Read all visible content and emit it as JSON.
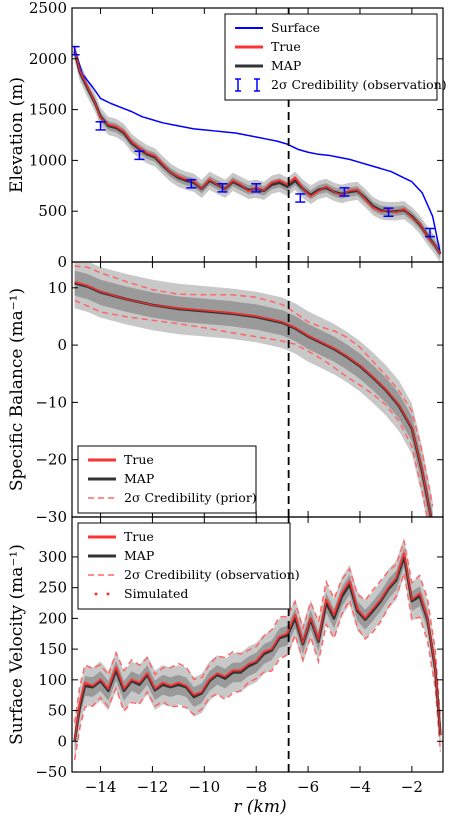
{
  "figure": {
    "shared_xlabel": "r (km)",
    "colors": {
      "surface": "#0000ff",
      "true": "#ff3333",
      "map": "#333333",
      "band_outer": "#c8c8c8",
      "band_inner": "#9a9a9a",
      "dashed_red": "#ff6666"
    }
  },
  "chart_data": [
    {
      "type": "line",
      "ylabel": "Elevation (m)",
      "xlim": [
        -15.1,
        -0.8
      ],
      "ylim": [
        0,
        2500
      ],
      "yticks": [
        0,
        500,
        1000,
        1500,
        2000,
        2500
      ],
      "legend_position": "top-right",
      "legend": [
        "Surface",
        "True",
        "MAP",
        "2σ Credibility (observation)"
      ],
      "vline_x": -6.75,
      "series": [
        {
          "name": "Surface",
          "x": [
            -15.0,
            -14.7,
            -14.3,
            -14.0,
            -13.6,
            -13.2,
            -12.8,
            -12.4,
            -12.0,
            -11.6,
            -11.2,
            -10.8,
            -10.4,
            -10.0,
            -9.6,
            -9.2,
            -8.8,
            -8.4,
            -8.0,
            -7.6,
            -7.2,
            -6.8,
            -6.4,
            -6.0,
            -5.6,
            -5.2,
            -4.8,
            -4.4,
            -4.0,
            -3.6,
            -3.2,
            -2.8,
            -2.4,
            -2.0,
            -1.6,
            -1.2,
            -0.9
          ],
          "y": [
            2100,
            1850,
            1720,
            1610,
            1560,
            1520,
            1480,
            1430,
            1400,
            1370,
            1350,
            1330,
            1310,
            1300,
            1290,
            1280,
            1270,
            1250,
            1230,
            1210,
            1190,
            1160,
            1110,
            1080,
            1060,
            1050,
            1030,
            1010,
            980,
            950,
            920,
            890,
            840,
            790,
            680,
            450,
            80
          ]
        },
        {
          "name": "True",
          "x": [
            -15.0,
            -14.8,
            -14.5,
            -14.2,
            -14.0,
            -13.7,
            -13.4,
            -13.1,
            -12.8,
            -12.5,
            -12.2,
            -11.9,
            -11.6,
            -11.3,
            -11.0,
            -10.7,
            -10.4,
            -10.1,
            -9.8,
            -9.5,
            -9.2,
            -8.9,
            -8.6,
            -8.3,
            -8.0,
            -7.7,
            -7.4,
            -7.1,
            -6.8,
            -6.5,
            -6.2,
            -5.9,
            -5.6,
            -5.3,
            -5.0,
            -4.7,
            -4.4,
            -4.1,
            -3.8,
            -3.5,
            -3.2,
            -2.9,
            -2.6,
            -2.3,
            -2.0,
            -1.7,
            -1.4,
            -1.1,
            -0.9
          ],
          "y": [
            2080,
            1880,
            1720,
            1560,
            1420,
            1350,
            1330,
            1280,
            1180,
            1120,
            1070,
            1040,
            960,
            880,
            840,
            810,
            790,
            720,
            810,
            760,
            720,
            800,
            760,
            700,
            730,
            700,
            780,
            800,
            760,
            830,
            720,
            650,
            700,
            740,
            690,
            660,
            700,
            710,
            620,
            540,
            500,
            510,
            490,
            520,
            440,
            380,
            250,
            160,
            80
          ]
        },
        {
          "name": "MAP",
          "x": [
            -15.0,
            -14.8,
            -14.5,
            -14.2,
            -14.0,
            -13.7,
            -13.4,
            -13.1,
            -12.8,
            -12.5,
            -12.2,
            -11.9,
            -11.6,
            -11.3,
            -11.0,
            -10.7,
            -10.4,
            -10.1,
            -9.8,
            -9.5,
            -9.2,
            -8.9,
            -8.6,
            -8.3,
            -8.0,
            -7.7,
            -7.4,
            -7.1,
            -6.8,
            -6.5,
            -6.2,
            -5.9,
            -5.6,
            -5.3,
            -5.0,
            -4.7,
            -4.4,
            -4.1,
            -3.8,
            -3.5,
            -3.2,
            -2.9,
            -2.6,
            -2.3,
            -2.0,
            -1.7,
            -1.4,
            -1.1,
            -0.9
          ],
          "y": [
            2070,
            1870,
            1710,
            1560,
            1430,
            1340,
            1320,
            1270,
            1170,
            1110,
            1060,
            1030,
            950,
            880,
            830,
            800,
            780,
            720,
            800,
            760,
            720,
            790,
            750,
            710,
            720,
            700,
            760,
            780,
            740,
            800,
            720,
            660,
            710,
            730,
            690,
            670,
            690,
            700,
            630,
            550,
            510,
            500,
            500,
            510,
            450,
            370,
            260,
            160,
            80
          ]
        }
      ],
      "credibility_points": {
        "x": [
          -15.0,
          -14.0,
          -12.5,
          -10.5,
          -9.3,
          -8.0,
          -6.3,
          -4.6,
          -2.9,
          -1.3
        ],
        "y": [
          2080,
          1340,
          1050,
          770,
          730,
          730,
          630,
          690,
          490,
          290
        ],
        "err": 40
      }
    },
    {
      "type": "line",
      "ylabel": "Specific Balance (ma⁻¹)",
      "xlim": [
        -15.1,
        -0.8
      ],
      "ylim": [
        -30,
        14.5
      ],
      "yticks": [
        -30,
        -20,
        -10,
        0,
        10
      ],
      "legend_position": "bottom-left",
      "legend": [
        "True",
        "MAP",
        "2σ Credibility (prior)"
      ],
      "vline_x": -6.75,
      "series": [
        {
          "name": "True",
          "x": [
            -15.0,
            -14.5,
            -14.0,
            -13.0,
            -12.0,
            -11.0,
            -10.0,
            -9.0,
            -8.0,
            -7.0,
            -6.5,
            -6.0,
            -5.5,
            -5.0,
            -4.5,
            -4.0,
            -3.5,
            -3.0,
            -2.5,
            -2.0,
            -1.6,
            -1.2
          ],
          "y": [
            11.0,
            10.3,
            9.3,
            8.0,
            7.0,
            6.4,
            6.0,
            5.6,
            5.0,
            4.0,
            3.0,
            1.6,
            0.5,
            -0.6,
            -2.0,
            -3.6,
            -5.6,
            -7.8,
            -10.5,
            -14.5,
            -22.0,
            -31.5
          ]
        },
        {
          "name": "MAP",
          "x": [
            -15.0,
            -14.5,
            -14.0,
            -13.0,
            -12.0,
            -11.0,
            -10.0,
            -9.0,
            -8.0,
            -7.0,
            -6.5,
            -6.0,
            -5.5,
            -5.0,
            -4.5,
            -4.0,
            -3.5,
            -3.0,
            -2.5,
            -2.0,
            -1.6,
            -1.2
          ],
          "y": [
            10.8,
            10.2,
            9.2,
            8.0,
            7.0,
            6.3,
            5.9,
            5.5,
            4.9,
            3.9,
            2.9,
            1.5,
            0.4,
            -0.7,
            -2.1,
            -3.7,
            -5.7,
            -7.9,
            -10.6,
            -14.6,
            -22.2,
            -31.5
          ]
        }
      ],
      "band_halfwidth": 2.2,
      "prior_offset": 3.0
    },
    {
      "type": "line",
      "ylabel": "Surface Velocity (ma⁻¹)",
      "xlim": [
        -15.1,
        -0.8
      ],
      "ylim": [
        -50,
        365
      ],
      "yticks": [
        -50,
        0,
        50,
        100,
        150,
        200,
        250,
        300
      ],
      "legend_position": "top-left",
      "legend": [
        "True",
        "MAP",
        "2σ Credibility (observation)",
        "Simulated"
      ],
      "vline_x": -6.75,
      "series": [
        {
          "name": "True",
          "x": [
            -15.0,
            -14.8,
            -14.6,
            -14.3,
            -14.0,
            -13.7,
            -13.4,
            -13.1,
            -12.8,
            -12.5,
            -12.2,
            -11.9,
            -11.6,
            -11.3,
            -11.0,
            -10.7,
            -10.4,
            -10.1,
            -9.8,
            -9.5,
            -9.2,
            -8.9,
            -8.6,
            -8.3,
            -8.0,
            -7.7,
            -7.4,
            -7.1,
            -6.8,
            -6.5,
            -6.2,
            -5.9,
            -5.6,
            -5.3,
            -5.0,
            -4.7,
            -4.4,
            -4.1,
            -3.8,
            -3.5,
            -3.2,
            -2.9,
            -2.6,
            -2.3,
            -2.0,
            -1.7,
            -1.4,
            -1.1,
            -0.9
          ],
          "y": [
            0,
            60,
            95,
            90,
            100,
            85,
            120,
            85,
            100,
            95,
            110,
            85,
            95,
            90,
            95,
            90,
            75,
            80,
            100,
            110,
            105,
            115,
            115,
            125,
            130,
            145,
            150,
            170,
            175,
            205,
            160,
            200,
            165,
            230,
            205,
            240,
            260,
            215,
            200,
            215,
            230,
            250,
            265,
            305,
            230,
            240,
            200,
            120,
            10
          ]
        },
        {
          "name": "MAP",
          "x": [
            -15.0,
            -14.8,
            -14.6,
            -14.3,
            -14.0,
            -13.7,
            -13.4,
            -13.1,
            -12.8,
            -12.5,
            -12.2,
            -11.9,
            -11.6,
            -11.3,
            -11.0,
            -10.7,
            -10.4,
            -10.1,
            -9.8,
            -9.5,
            -9.2,
            -8.9,
            -8.6,
            -8.3,
            -8.0,
            -7.7,
            -7.4,
            -7.1,
            -6.8,
            -6.5,
            -6.2,
            -5.9,
            -5.6,
            -5.3,
            -5.0,
            -4.7,
            -4.4,
            -4.1,
            -3.8,
            -3.5,
            -3.2,
            -2.9,
            -2.6,
            -2.3,
            -2.0,
            -1.7,
            -1.4,
            -1.1,
            -0.9
          ],
          "y": [
            0,
            55,
            90,
            88,
            98,
            82,
            115,
            82,
            98,
            92,
            108,
            83,
            92,
            88,
            92,
            88,
            72,
            78,
            98,
            108,
            102,
            112,
            112,
            122,
            128,
            142,
            148,
            168,
            172,
            200,
            158,
            198,
            162,
            225,
            200,
            235,
            255,
            212,
            198,
            212,
            228,
            248,
            262,
            300,
            228,
            236,
            198,
            118,
            10
          ]
        }
      ],
      "band_halfwidth": 16,
      "obs_offset": 30
    }
  ]
}
